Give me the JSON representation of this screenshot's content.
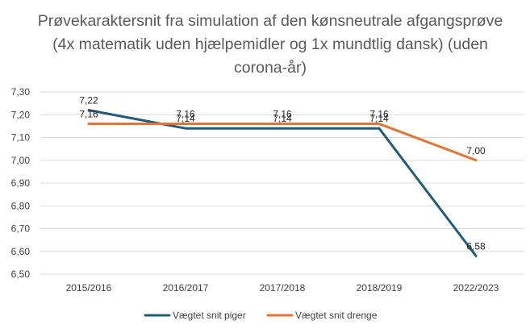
{
  "chart_data": {
    "type": "line",
    "title": "Prøvekaraktersnit fra simulation af den kønsneutrale afgangsprøve (4x matematik uden hjælpemidler og 1x mundtlig dansk) (uden corona-år)",
    "categories": [
      "2015/2016",
      "2016/2017",
      "2017/2018",
      "2018/2019",
      "2022/2023"
    ],
    "series": [
      {
        "name": "Vægtet snit piger",
        "values": [
          7.22,
          7.14,
          7.14,
          7.14,
          6.58
        ],
        "labels": [
          "7,22",
          "7,14",
          "7,14",
          "7,14",
          "6,58"
        ],
        "color": "#1F5C7A"
      },
      {
        "name": "Vægtet snit drenge",
        "values": [
          7.16,
          7.16,
          7.16,
          7.16,
          7.0
        ],
        "labels": [
          "7,16",
          "7,16",
          "7,16",
          "7,16",
          "7,00"
        ],
        "color": "#E97132"
      }
    ],
    "ylim": [
      6.5,
      7.3
    ],
    "yticks": [
      6.5,
      6.6,
      6.7,
      6.8,
      6.9,
      7.0,
      7.1,
      7.2,
      7.3
    ],
    "ytick_labels": [
      "6,50",
      "6,60",
      "6,70",
      "6,80",
      "6,90",
      "7,00",
      "7,10",
      "7,20",
      "7,30"
    ],
    "grid": true,
    "legend": "bottom",
    "grid_color": "#D9D9D9"
  }
}
